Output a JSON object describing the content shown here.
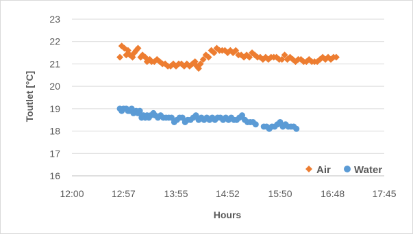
{
  "chart_data": {
    "type": "scatter",
    "title": "",
    "xlabel": "Hours",
    "ylabel": "Toutlet [°C]",
    "x_unit": "time of day (hh:mm)",
    "xlim": [
      "12:00",
      "17:45"
    ],
    "ylim": [
      16,
      23
    ],
    "x_ticks": [
      "12:00",
      "12:57",
      "13:55",
      "14:52",
      "15:50",
      "16:48",
      "17:45"
    ],
    "y_ticks": [
      16,
      17,
      18,
      19,
      20,
      21,
      22,
      23
    ],
    "grid": "horizontal",
    "legend_position": "bottom-right",
    "series": [
      {
        "name": "Air",
        "color": "#ED7D31",
        "marker": "diamond",
        "points": [
          [
            "12:53",
            21.3
          ],
          [
            "12:55",
            21.8
          ],
          [
            "12:58",
            21.7
          ],
          [
            "13:00",
            21.4
          ],
          [
            "13:02",
            21.6
          ],
          [
            "13:04",
            21.4
          ],
          [
            "13:07",
            21.3
          ],
          [
            "13:09",
            21.5
          ],
          [
            "13:11",
            21.6
          ],
          [
            "13:13",
            21.7
          ],
          [
            "13:16",
            21.3
          ],
          [
            "13:18",
            21.4
          ],
          [
            "13:21",
            21.3
          ],
          [
            "13:23",
            21.1
          ],
          [
            "13:26",
            21.2
          ],
          [
            "13:28",
            21.1
          ],
          [
            "13:31",
            21.1
          ],
          [
            "13:34",
            21.2
          ],
          [
            "13:37",
            21.1
          ],
          [
            "13:40",
            21.0
          ],
          [
            "13:43",
            21.0
          ],
          [
            "13:46",
            20.9
          ],
          [
            "13:49",
            20.9
          ],
          [
            "13:52",
            21.0
          ],
          [
            "13:55",
            20.9
          ],
          [
            "13:58",
            21.0
          ],
          [
            "14:01",
            21.0
          ],
          [
            "14:04",
            20.9
          ],
          [
            "14:07",
            21.0
          ],
          [
            "14:10",
            20.9
          ],
          [
            "14:13",
            21.0
          ],
          [
            "14:16",
            21.1
          ],
          [
            "14:18",
            20.9
          ],
          [
            "14:20",
            20.8
          ],
          [
            "14:22",
            21.0
          ],
          [
            "14:25",
            21.2
          ],
          [
            "14:28",
            21.4
          ],
          [
            "14:31",
            21.3
          ],
          [
            "14:34",
            21.6
          ],
          [
            "14:37",
            21.5
          ],
          [
            "14:40",
            21.7
          ],
          [
            "14:43",
            21.6
          ],
          [
            "14:46",
            21.6
          ],
          [
            "14:49",
            21.6
          ],
          [
            "14:52",
            21.5
          ],
          [
            "14:55",
            21.6
          ],
          [
            "14:58",
            21.5
          ],
          [
            "15:01",
            21.6
          ],
          [
            "15:04",
            21.4
          ],
          [
            "15:07",
            21.4
          ],
          [
            "15:10",
            21.3
          ],
          [
            "15:13",
            21.4
          ],
          [
            "15:16",
            21.3
          ],
          [
            "15:19",
            21.5
          ],
          [
            "15:22",
            21.4
          ],
          [
            "15:25",
            21.3
          ],
          [
            "15:28",
            21.3
          ],
          [
            "15:31",
            21.2
          ],
          [
            "15:34",
            21.3
          ],
          [
            "15:37",
            21.2
          ],
          [
            "15:40",
            21.3
          ],
          [
            "15:43",
            21.3
          ],
          [
            "15:46",
            21.3
          ],
          [
            "15:49",
            21.2
          ],
          [
            "15:52",
            21.2
          ],
          [
            "15:55",
            21.4
          ],
          [
            "15:58",
            21.2
          ],
          [
            "16:01",
            21.3
          ],
          [
            "16:04",
            21.2
          ],
          [
            "16:07",
            21.1
          ],
          [
            "16:10",
            21.2
          ],
          [
            "16:13",
            21.2
          ],
          [
            "16:16",
            21.1
          ],
          [
            "16:19",
            21.1
          ],
          [
            "16:22",
            21.2
          ],
          [
            "16:25",
            21.1
          ],
          [
            "16:28",
            21.1
          ],
          [
            "16:31",
            21.1
          ],
          [
            "16:34",
            21.2
          ],
          [
            "16:37",
            21.3
          ],
          [
            "16:40",
            21.2
          ],
          [
            "16:43",
            21.3
          ],
          [
            "16:46",
            21.2
          ],
          [
            "16:49",
            21.3
          ],
          [
            "16:52",
            21.3
          ]
        ]
      },
      {
        "name": "Water",
        "color": "#5B9BD5",
        "marker": "circle",
        "points": [
          [
            "12:53",
            19.0
          ],
          [
            "12:55",
            18.9
          ],
          [
            "12:57",
            19.0
          ],
          [
            "13:00",
            19.0
          ],
          [
            "13:02",
            18.9
          ],
          [
            "13:04",
            18.9
          ],
          [
            "13:06",
            19.0
          ],
          [
            "13:08",
            18.8
          ],
          [
            "13:11",
            18.9
          ],
          [
            "13:13",
            18.8
          ],
          [
            "13:15",
            18.9
          ],
          [
            "13:17",
            18.6
          ],
          [
            "13:19",
            18.7
          ],
          [
            "13:21",
            18.6
          ],
          [
            "13:23",
            18.7
          ],
          [
            "13:25",
            18.6
          ],
          [
            "13:27",
            18.7
          ],
          [
            "13:30",
            18.8
          ],
          [
            "13:32",
            18.7
          ],
          [
            "13:35",
            18.6
          ],
          [
            "13:38",
            18.7
          ],
          [
            "13:41",
            18.6
          ],
          [
            "13:44",
            18.6
          ],
          [
            "13:47",
            18.6
          ],
          [
            "13:50",
            18.6
          ],
          [
            "13:53",
            18.4
          ],
          [
            "13:56",
            18.5
          ],
          [
            "13:59",
            18.6
          ],
          [
            "14:02",
            18.6
          ],
          [
            "14:05",
            18.4
          ],
          [
            "14:08",
            18.5
          ],
          [
            "14:11",
            18.5
          ],
          [
            "14:14",
            18.6
          ],
          [
            "14:17",
            18.7
          ],
          [
            "14:20",
            18.5
          ],
          [
            "14:23",
            18.6
          ],
          [
            "14:26",
            18.5
          ],
          [
            "14:29",
            18.6
          ],
          [
            "14:32",
            18.5
          ],
          [
            "14:35",
            18.6
          ],
          [
            "14:38",
            18.5
          ],
          [
            "14:41",
            18.6
          ],
          [
            "14:44",
            18.6
          ],
          [
            "14:47",
            18.5
          ],
          [
            "14:50",
            18.6
          ],
          [
            "14:53",
            18.5
          ],
          [
            "14:56",
            18.6
          ],
          [
            "14:59",
            18.5
          ],
          [
            "15:02",
            18.5
          ],
          [
            "15:05",
            18.6
          ],
          [
            "15:08",
            18.7
          ],
          [
            "15:11",
            18.5
          ],
          [
            "15:14",
            18.4
          ],
          [
            "15:17",
            18.4
          ],
          [
            "15:20",
            18.4
          ],
          [
            "15:23",
            18.3
          ],
          [
            "15:32",
            18.2
          ],
          [
            "15:35",
            18.2
          ],
          [
            "15:38",
            18.1
          ],
          [
            "15:41",
            18.2
          ],
          [
            "15:44",
            18.2
          ],
          [
            "15:47",
            18.3
          ],
          [
            "15:50",
            18.4
          ],
          [
            "15:53",
            18.2
          ],
          [
            "15:56",
            18.3
          ],
          [
            "15:59",
            18.2
          ],
          [
            "16:02",
            18.2
          ],
          [
            "16:05",
            18.2
          ],
          [
            "16:08",
            18.1
          ]
        ]
      }
    ]
  }
}
